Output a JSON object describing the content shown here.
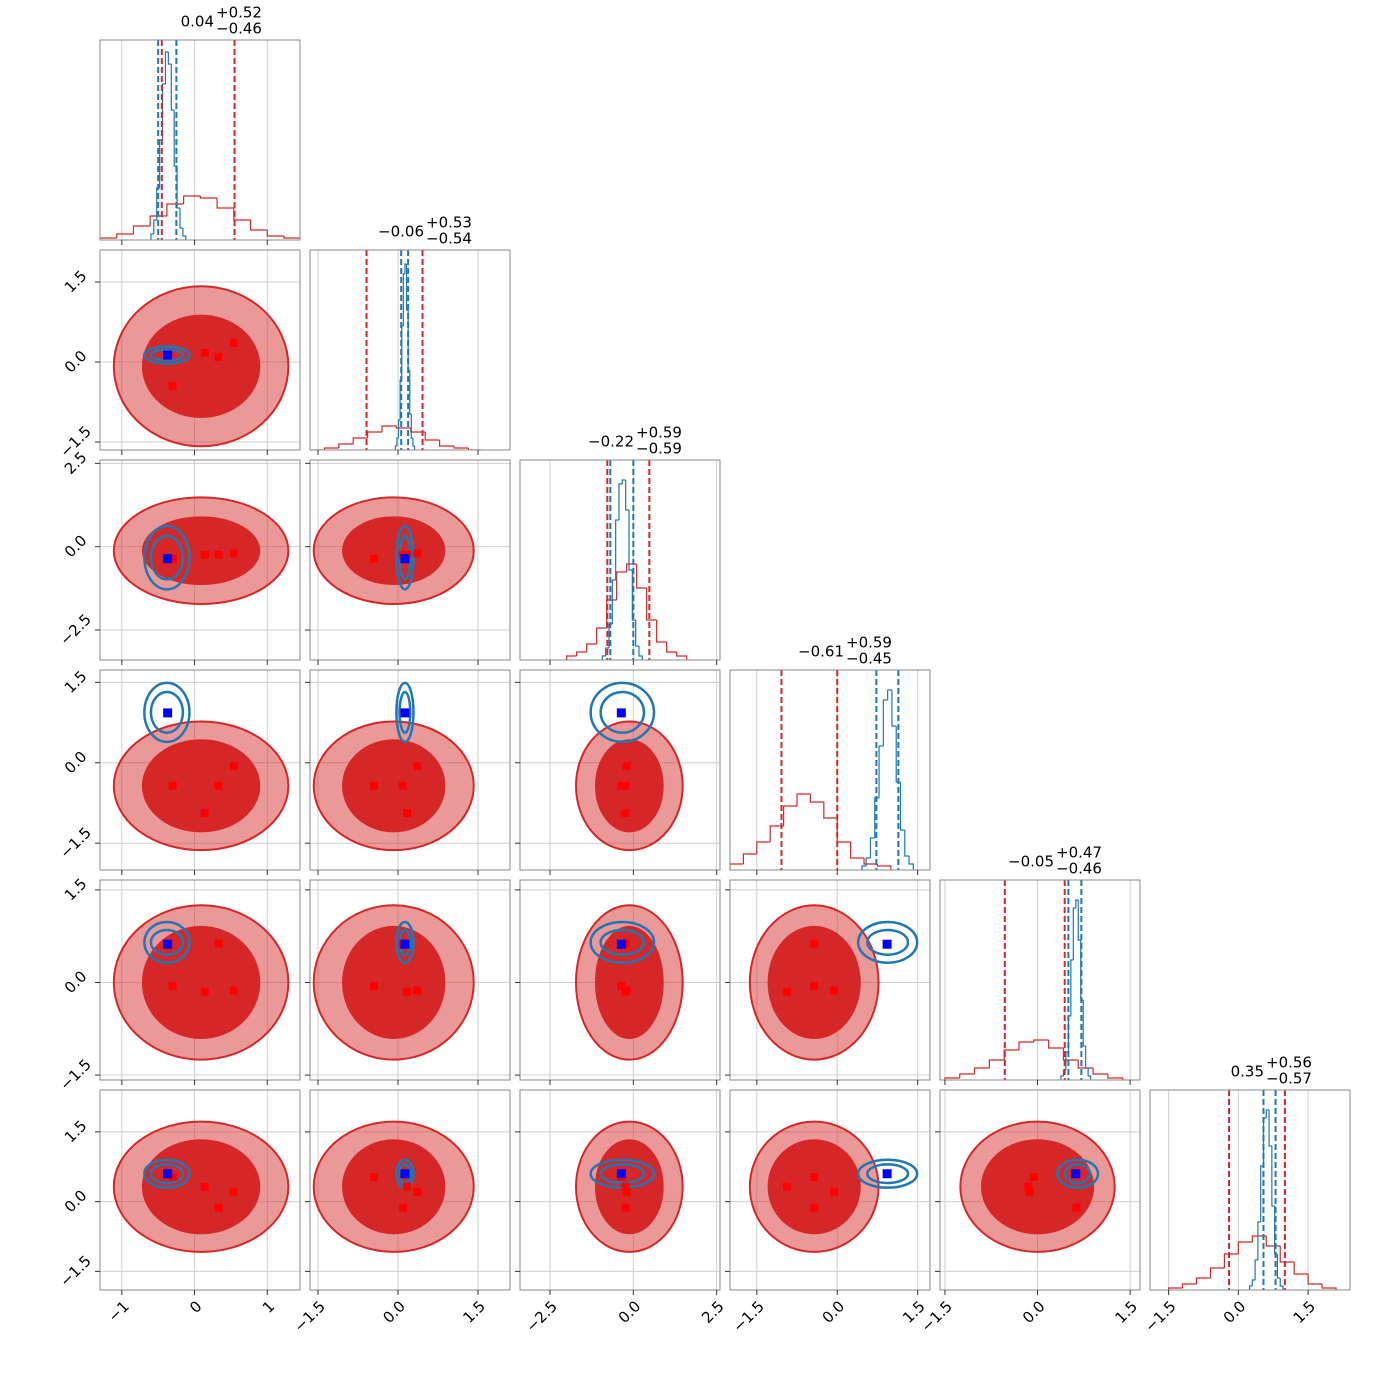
{
  "chart_data": {
    "type": "corner",
    "colors": {
      "red": "#d62728",
      "blue": "#1f77b4",
      "sample": "#ff0000",
      "truth": "#0000ff"
    },
    "grid": true,
    "hist_ylim": [
      0,
      100
    ],
    "params": [
      {
        "lim": [
          -1.3,
          1.45
        ],
        "ticks": [
          {
            "value": -1,
            "label": "−1"
          },
          0,
          1
        ],
        "title": {
          "median": "0.04",
          "plus": "+0.52",
          "minus": "−0.46"
        },
        "red_hist": {
          "bins": [
            -1.3,
            -1.07,
            -0.84,
            -0.61,
            -0.38,
            -0.15,
            0.08,
            0.31,
            0.54,
            0.77,
            1.0,
            1.23,
            1.46
          ],
          "counts": [
            1,
            3,
            7,
            12,
            18,
            22,
            21,
            16,
            10,
            5,
            2,
            1
          ]
        },
        "blue_hist": {
          "bins": [
            -0.6,
            -0.56,
            -0.52,
            -0.48,
            -0.44,
            -0.4,
            -0.36,
            -0.32,
            -0.28,
            -0.24,
            -0.2,
            -0.16,
            -0.12
          ],
          "counts": [
            3,
            10,
            26,
            50,
            78,
            94,
            88,
            65,
            37,
            16,
            6,
            2
          ]
        },
        "red_quantiles": [
          -0.45,
          0.55
        ],
        "blue_quantiles": [
          -0.5,
          -0.25
        ],
        "red_contour": {
          "center": 0.09,
          "radii": [
            0.8,
            1.2
          ]
        },
        "blue_contour": {
          "center": -0.38,
          "radii": [
            0.22,
            0.31
          ]
        },
        "truth": -0.37,
        "samples": [
          -0.3,
          0.14,
          0.33,
          0.54
        ]
      },
      {
        "lim": [
          -1.65,
          2.1
        ],
        "ticks": [
          {
            "value": -1.5,
            "label": "−1.5"
          },
          {
            "value": 0,
            "label": "0.0"
          },
          1.5
        ],
        "title": {
          "median": "−0.06",
          "plus": "+0.53",
          "minus": "−0.54"
        },
        "red_hist": {
          "bins": [
            -1.65,
            -1.38,
            -1.11,
            -0.84,
            -0.57,
            -0.3,
            -0.03,
            0.24,
            0.51,
            0.78,
            1.05,
            1.32,
            1.59
          ],
          "counts": [
            0,
            1,
            3,
            6,
            9,
            12,
            11,
            9,
            5,
            2,
            1,
            0
          ]
        },
        "blue_hist": {
          "bins": [
            -0.05,
            -0.02,
            0.01,
            0.04,
            0.07,
            0.1,
            0.13,
            0.16,
            0.19,
            0.22,
            0.25,
            0.28,
            0.31
          ],
          "counts": [
            2,
            6,
            15,
            35,
            62,
            88,
            93,
            70,
            40,
            18,
            6,
            2
          ]
        },
        "red_quantiles": [
          -0.59,
          0.46
        ],
        "blue_quantiles": [
          0.06,
          0.19
        ],
        "red_contour": {
          "center": -0.08,
          "radii": [
            0.95,
            1.5
          ]
        },
        "blue_contour": {
          "center": 0.13,
          "radii": [
            0.1,
            0.16
          ]
        },
        "truth": 0.13,
        "samples": [
          -0.45,
          0.17,
          0.09,
          0.36
        ]
      },
      {
        "lim": [
          -3.4,
          2.6
        ],
        "ticks": [
          {
            "value": -2.5,
            "label": "−2.5"
          },
          {
            "value": 0,
            "label": "0.0"
          },
          2.5
        ],
        "title": {
          "median": "−0.22",
          "plus": "+0.59",
          "minus": "−0.59"
        },
        "red_hist": {
          "bins": [
            -2.0,
            -1.7,
            -1.4,
            -1.1,
            -0.8,
            -0.5,
            -0.2,
            0.1,
            0.4,
            0.7,
            1.0,
            1.3,
            1.6
          ],
          "counts": [
            2,
            4,
            8,
            16,
            30,
            44,
            48,
            36,
            20,
            9,
            4,
            2
          ]
        },
        "blue_hist": {
          "bins": [
            -0.93,
            -0.83,
            -0.73,
            -0.63,
            -0.53,
            -0.43,
            -0.33,
            -0.23,
            -0.13,
            -0.03,
            0.07,
            0.17,
            0.27
          ],
          "counts": [
            2,
            6,
            18,
            40,
            70,
            88,
            90,
            75,
            45,
            20,
            7,
            2
          ]
        },
        "red_quantiles": [
          -0.78,
          0.48
        ],
        "blue_quantiles": [
          -0.69,
          0.0
        ],
        "red_contour": {
          "center": -0.12,
          "radii": [
            1.0,
            1.6
          ]
        },
        "blue_contour": {
          "center": -0.33,
          "radii": [
            0.65,
            0.95
          ]
        },
        "truth": -0.36,
        "samples": [
          -0.36,
          -0.24,
          -0.24,
          -0.2
        ]
      },
      {
        "lim": [
          -2.0,
          1.73
        ],
        "ticks": [
          {
            "value": -1.5,
            "label": "−1.5"
          },
          {
            "value": 0,
            "label": "0.0"
          },
          1.5
        ],
        "title": {
          "median": "−0.61",
          "plus": "+0.59",
          "minus": "−0.45"
        },
        "red_hist": {
          "bins": [
            -2.0,
            -1.75,
            -1.5,
            -1.25,
            -1.0,
            -0.75,
            -0.5,
            -0.25,
            0.0,
            0.25,
            0.5,
            0.75,
            1.0
          ],
          "counts": [
            3,
            8,
            14,
            22,
            32,
            38,
            34,
            26,
            14,
            6,
            3,
            2
          ]
        },
        "blue_hist": {
          "bins": [
            0.46,
            0.54,
            0.62,
            0.7,
            0.78,
            0.86,
            0.94,
            1.02,
            1.1,
            1.18,
            1.26,
            1.34,
            1.42
          ],
          "counts": [
            2,
            6,
            16,
            36,
            62,
            85,
            90,
            72,
            44,
            20,
            7,
            3
          ]
        },
        "red_quantiles": [
          -1.04,
          0.0
        ],
        "blue_quantiles": [
          0.73,
          1.14
        ],
        "red_contour": {
          "center": -0.43,
          "radii": [
            0.85,
            1.2
          ]
        },
        "blue_contour": {
          "center": 0.94,
          "radii": [
            0.38,
            0.55
          ]
        },
        "truth": 0.93,
        "samples": [
          -0.43,
          -0.94,
          -0.43,
          -0.06
        ]
      },
      {
        "lim": [
          -1.58,
          1.66
        ],
        "ticks": [
          {
            "value": -1.5,
            "label": "−1.5"
          },
          {
            "value": 0,
            "label": "0.0"
          },
          1.5
        ],
        "title": {
          "median": "−0.05",
          "plus": "+0.47",
          "minus": "−0.46"
        },
        "red_hist": {
          "bins": [
            -1.5,
            -1.26,
            -1.02,
            -0.78,
            -0.54,
            -0.3,
            -0.06,
            0.18,
            0.42,
            0.66,
            0.9,
            1.14,
            1.38
          ],
          "counts": [
            1,
            3,
            6,
            10,
            15,
            19,
            20,
            16,
            10,
            6,
            3,
            1
          ]
        },
        "blue_hist": {
          "bins": [
            0.38,
            0.42,
            0.46,
            0.5,
            0.54,
            0.58,
            0.62,
            0.66,
            0.7,
            0.74,
            0.78,
            0.82,
            0.86
          ],
          "counts": [
            2,
            5,
            14,
            32,
            60,
            86,
            90,
            70,
            40,
            17,
            6,
            2
          ]
        },
        "red_quantiles": [
          -0.53,
          0.44
        ],
        "blue_quantiles": [
          0.5,
          0.71
        ],
        "red_contour": {
          "center": 0.0,
          "radii": [
            0.9,
            1.25
          ]
        },
        "blue_contour": {
          "center": 0.65,
          "radii": [
            0.2,
            0.33
          ]
        },
        "truth": 0.62,
        "samples": [
          -0.06,
          -0.15,
          0.63,
          -0.13
        ]
      },
      {
        "lim": [
          -1.9,
          2.4
        ],
        "ticks": [
          {
            "value": -1.5,
            "label": "−1.5"
          },
          {
            "value": 0,
            "label": "0.0"
          },
          1.5
        ],
        "title": {
          "median": "0.35",
          "plus": "+0.56",
          "minus": "−0.57"
        },
        "red_hist": {
          "bins": [
            -1.5,
            -1.2,
            -0.9,
            -0.6,
            -0.3,
            0.0,
            0.3,
            0.6,
            0.9,
            1.2,
            1.5,
            1.8,
            2.1
          ],
          "counts": [
            1,
            3,
            6,
            11,
            18,
            24,
            27,
            22,
            14,
            8,
            3,
            1
          ]
        },
        "blue_hist": {
          "bins": [
            0.24,
            0.3,
            0.36,
            0.42,
            0.48,
            0.54,
            0.6,
            0.66,
            0.72,
            0.78,
            0.84,
            0.9,
            0.96
          ],
          "counts": [
            2,
            5,
            15,
            34,
            62,
            86,
            90,
            72,
            42,
            18,
            6,
            2
          ]
        },
        "red_quantiles": [
          -0.2,
          1.0
        ],
        "blue_quantiles": [
          0.54,
          0.8
        ],
        "red_contour": {
          "center": 0.32,
          "radii": [
            1.0,
            1.4
          ]
        },
        "blue_contour": {
          "center": 0.6,
          "radii": [
            0.2,
            0.3
          ]
        },
        "truth": 0.6,
        "samples": [
          0.53,
          0.32,
          -0.13,
          0.21
        ]
      }
    ]
  }
}
